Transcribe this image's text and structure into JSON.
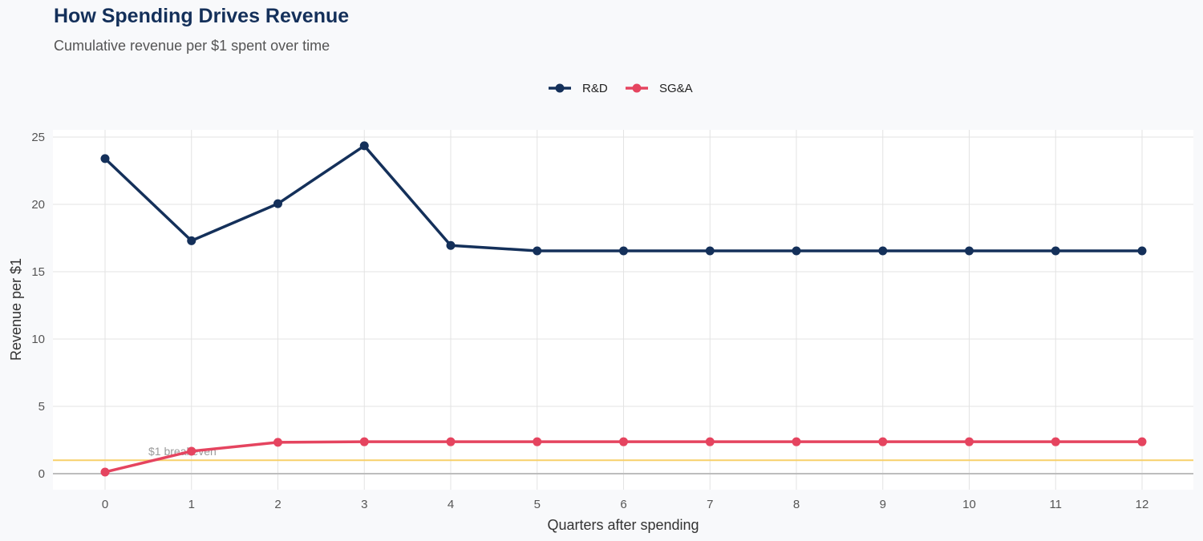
{
  "chart_data": {
    "type": "line",
    "title": "How Spending Drives Revenue",
    "subtitle": "Cumulative revenue per $1 spent over time",
    "xlabel": "Quarters after spending",
    "ylabel": "Revenue per $1",
    "x": [
      0,
      1,
      2,
      3,
      4,
      5,
      6,
      7,
      8,
      9,
      10,
      11,
      12
    ],
    "xlim": [
      -0.6,
      12.6
    ],
    "ylim": [
      -1.2,
      25.5
    ],
    "yticks": [
      0,
      5,
      10,
      15,
      20,
      25
    ],
    "grid": true,
    "legend": "top-center",
    "series": [
      {
        "name": "R&D",
        "color": "#14305a",
        "values": [
          23.4,
          17.3,
          20.05,
          24.35,
          16.95,
          16.55,
          16.55,
          16.55,
          16.55,
          16.55,
          16.55,
          16.55,
          16.55
        ]
      },
      {
        "name": "SG&A",
        "color": "#e5445f",
        "values": [
          0.12,
          1.67,
          2.33,
          2.37,
          2.37,
          2.37,
          2.37,
          2.37,
          2.37,
          2.37,
          2.37,
          2.37,
          2.37
        ]
      }
    ],
    "reference_line": {
      "y": 1,
      "label": "$1 breakeven",
      "color": "#f7d06a"
    }
  }
}
